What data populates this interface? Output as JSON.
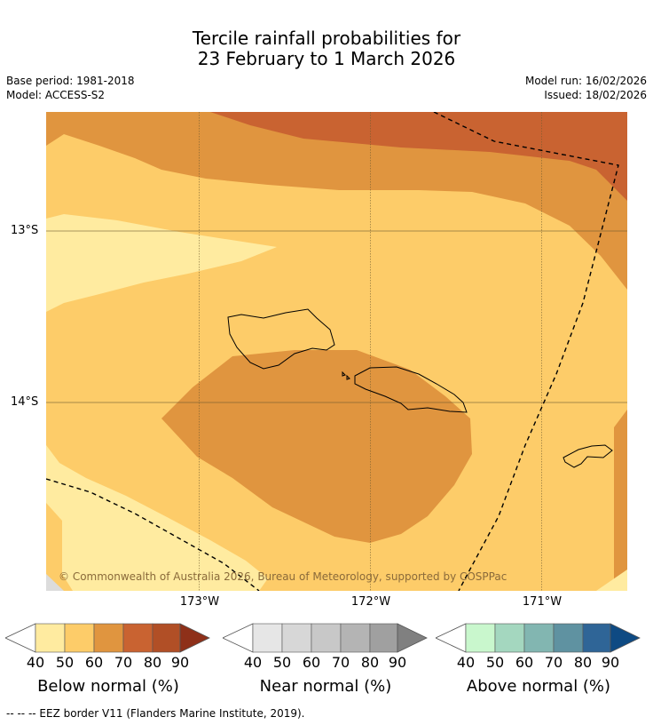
{
  "title": {
    "line1": "Tercile rainfall probabilities for",
    "line2": "23 February to 1 March 2026"
  },
  "meta": {
    "base_period": "Base period: 1981-2018",
    "model": "Model: ACCESS-S2",
    "model_run": "Model run: 16/02/2026",
    "issued": "Issued: 18/02/2026"
  },
  "map": {
    "lat_labels": [
      "13°S",
      "14°S"
    ],
    "lon_labels": [
      "173°W",
      "172°W",
      "171°W"
    ],
    "copyright": "© Commonwealth of Australia 2026, Bureau of Meteorology, supported by COSPPac"
  },
  "colors": {
    "below": [
      "#ffeba0",
      "#fdcc69",
      "#e0953f",
      "#c96331",
      "#b14f26",
      "#8e3019"
    ],
    "near": [
      "#e6e6e6",
      "#d7d7d7",
      "#c8c8c8",
      "#b4b4b4",
      "#a0a0a0",
      "#808080"
    ],
    "above": [
      "#c9f7cd",
      "#a4d7bf",
      "#82b6b1",
      "#5f92a1",
      "#2f6597",
      "#0e4a83"
    ]
  },
  "legends": [
    {
      "title": "Below normal (%)",
      "ticks": [
        "40",
        "50",
        "60",
        "70",
        "80",
        "90"
      ]
    },
    {
      "title": "Near normal (%)",
      "ticks": [
        "40",
        "50",
        "60",
        "70",
        "80",
        "90"
      ]
    },
    {
      "title": "Above normal (%)",
      "ticks": [
        "40",
        "50",
        "60",
        "70",
        "80",
        "90"
      ]
    }
  ],
  "footnote": "--  --  -- EEZ border V11 (Flanders Marine Institute, 2019)."
}
